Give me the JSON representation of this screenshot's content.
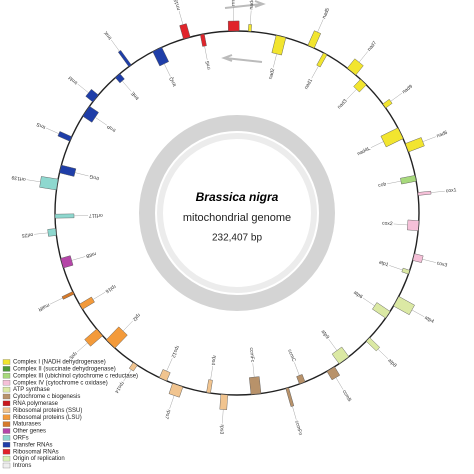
{
  "center": {
    "title": "Brassica nigra",
    "subtitle": "mitochondrial genome",
    "length": "232,407 bp"
  },
  "legend": {
    "items": [
      {
        "label": "Complex I (NADH dehydrogenase)",
        "color": "#f2e52f",
        "genes": [
          "nad4",
          "nad2",
          "nad5",
          "nad1",
          "nad7",
          "nad3",
          "nad9",
          "nad4L",
          "nad6"
        ]
      },
      {
        "label": "Complex II (succinate dehydrogenase)",
        "color": "#4f9a3a",
        "genes": []
      },
      {
        "label": "Complex III (ubichinol cytochrome c reductase)",
        "color": "#a7d97c",
        "genes": [
          "cob"
        ]
      },
      {
        "label": "Complex IV (cytochrome c oxidase)",
        "color": "#f5c0d8",
        "genes": [
          "cox1",
          "cox2",
          "cox3"
        ]
      },
      {
        "label": "ATP synthase",
        "color": "#dbe9a4",
        "genes": [
          "atp1",
          "atp4",
          "atp6",
          "atp8",
          "atp9"
        ]
      },
      {
        "label": "Cytochrome c biogenesis",
        "color": "#b8926a",
        "genes": [
          "ccmB",
          "ccmC",
          "ccmFn",
          "ccmFc"
        ]
      },
      {
        "label": "RNA polymerase",
        "color": "#c8171d",
        "genes": []
      },
      {
        "label": "Ribosomal proteins (SSU)",
        "color": "#f1c48f",
        "genes": [
          "rps3",
          "rps4",
          "rps7",
          "rps12",
          "rps14"
        ]
      },
      {
        "label": "Ribosomal proteins (LSU)",
        "color": "#f39a3a",
        "genes": [
          "rpl2",
          "rpl5",
          "rpl16"
        ]
      },
      {
        "label": "Maturases",
        "color": "#d5792a",
        "genes": [
          "matR"
        ]
      },
      {
        "label": "Other genes",
        "color": "#b546a8",
        "genes": [
          "mttB"
        ]
      },
      {
        "label": "ORFs",
        "color": "#8ed8cf",
        "genes": [
          "orf25",
          "orf117",
          "orf139"
        ]
      },
      {
        "label": "Transfer RNAs",
        "color": "#1f3ea8",
        "genes": [
          "trnG",
          "trnS",
          "trnP",
          "trnM",
          "trnE",
          "trnK",
          "trnQ"
        ]
      },
      {
        "label": "Ribosomal RNAs",
        "color": "#e0242b",
        "genes": [
          "rrn18",
          "rrn5",
          "rrn26"
        ]
      },
      {
        "label": "Origin of replication",
        "color": "#d9f2b5",
        "genes": []
      },
      {
        "label": "Introns",
        "color": "#eeeeee",
        "genes": []
      }
    ]
  }
}
